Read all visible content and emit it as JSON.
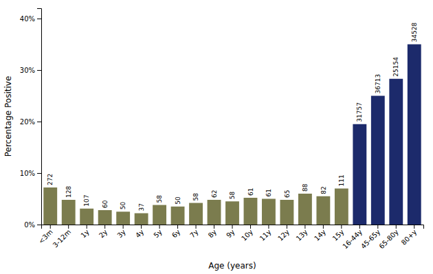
{
  "chart_data": {
    "type": "bar",
    "categories": [
      "<3m",
      "3-12m",
      "1y",
      "2y",
      "3y",
      "4y",
      "5y",
      "6y",
      "7y",
      "8y",
      "9y",
      "10y",
      "11y",
      "12y",
      "13y",
      "14y",
      "15y",
      "16-44y",
      "45-65y",
      "65-80y",
      "80+y"
    ],
    "values": [
      7.2,
      4.8,
      3.1,
      2.8,
      2.5,
      2.2,
      3.8,
      3.5,
      4.2,
      4.8,
      4.5,
      5.2,
      5.0,
      4.8,
      6.0,
      5.5,
      7.0,
      19.5,
      25.0,
      28.3,
      35.0
    ],
    "n": [
      272,
      128,
      107,
      60,
      50,
      37,
      58,
      50,
      58,
      62,
      58,
      61,
      61,
      65,
      88,
      82,
      111,
      31757,
      36713,
      25154,
      34528
    ],
    "colors": [
      "#7b7c4e",
      "#7b7c4e",
      "#7b7c4e",
      "#7b7c4e",
      "#7b7c4e",
      "#7b7c4e",
      "#7b7c4e",
      "#7b7c4e",
      "#7b7c4e",
      "#7b7c4e",
      "#7b7c4e",
      "#7b7c4e",
      "#7b7c4e",
      "#7b7c4e",
      "#7b7c4e",
      "#7b7c4e",
      "#7b7c4e",
      "#1c2a6b",
      "#1c2a6b",
      "#1c2a6b",
      "#1c2a6b"
    ],
    "ylabel": "Percentage Positive",
    "xlabel": "Age (years)",
    "ylim": [
      0,
      42
    ],
    "yticks": [
      {
        "value": 0,
        "label": "0%"
      },
      {
        "value": 10,
        "label": "10%"
      },
      {
        "value": 20,
        "label": "20%"
      },
      {
        "value": 30,
        "label": "30%"
      },
      {
        "value": 40,
        "label": "40%"
      }
    ],
    "grid": false
  }
}
